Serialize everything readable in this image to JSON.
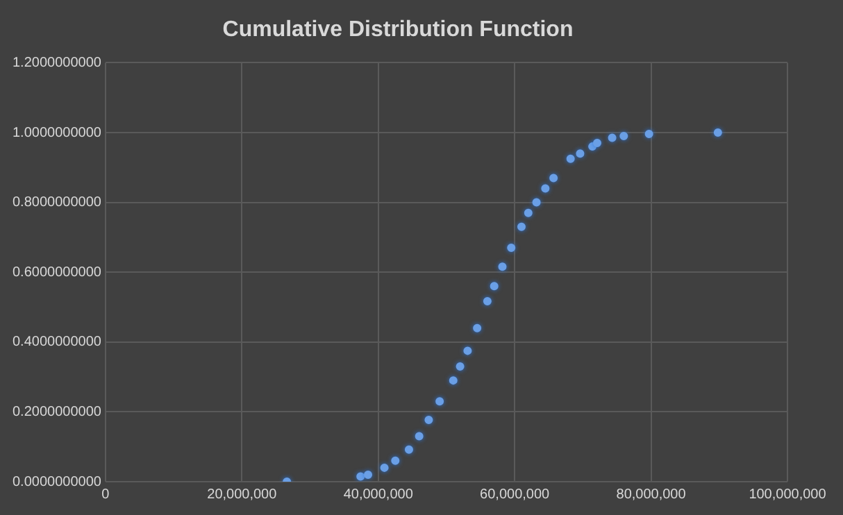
{
  "chart_data": {
    "type": "scatter",
    "title": "Cumulative Distribution Function",
    "x": [
      26600000,
      37400000,
      38500000,
      40900000,
      42500000,
      44500000,
      46000000,
      47400000,
      49000000,
      51000000,
      52000000,
      53100000,
      54500000,
      56000000,
      57000000,
      58200000,
      59500000,
      61000000,
      62000000,
      63200000,
      64500000,
      65700000,
      68200000,
      69600000,
      71400000,
      72100000,
      74300000,
      76000000,
      79700000,
      89800000
    ],
    "series": [
      {
        "color": "#6a9fe6",
        "values": [
          0,
          0.015,
          0.02,
          0.04,
          0.06,
          0.092,
          0.13,
          0.177,
          0.23,
          0.29,
          0.33,
          0.375,
          0.44,
          0.517,
          0.56,
          0.616,
          0.67,
          0.73,
          0.77,
          0.8,
          0.84,
          0.87,
          0.925,
          0.94,
          0.96,
          0.97,
          0.985,
          0.99,
          0.996,
          1.0
        ]
      }
    ],
    "xlim": [
      0,
      100000000
    ],
    "xticks": [
      {
        "value": 0,
        "label": "0"
      },
      {
        "value": 20000000,
        "label": "20,000,000"
      },
      {
        "value": 40000000,
        "label": "40,000,000"
      },
      {
        "value": 60000000,
        "label": "60,000,000"
      },
      {
        "value": 80000000,
        "label": "80,000,000"
      },
      {
        "value": 100000000,
        "label": "100,000,000"
      }
    ],
    "ylim": [
      0,
      1.2
    ],
    "yticks": [
      {
        "value": 0,
        "label": "0.0000000000"
      },
      {
        "value": 0.2,
        "label": "0.2000000000"
      },
      {
        "value": 0.4,
        "label": "0.4000000000"
      },
      {
        "value": 0.6,
        "label": "0.6000000000"
      },
      {
        "value": 0.8,
        "label": "0.8000000000"
      },
      {
        "value": 1.0,
        "label": "1.0000000000"
      },
      {
        "value": 1.2,
        "label": "1.2000000000"
      }
    ],
    "grid": true,
    "legend": false,
    "marker": "circle"
  }
}
